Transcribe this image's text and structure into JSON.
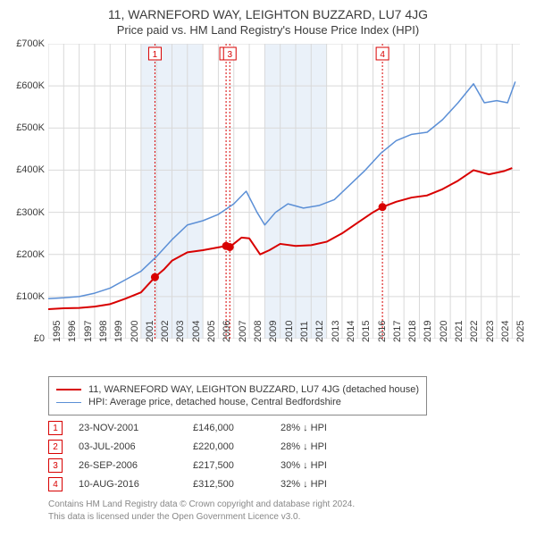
{
  "title": "11, WARNEFORD WAY, LEIGHTON BUZZARD, LU7 4JG",
  "subtitle": "Price paid vs. HM Land Registry's House Price Index (HPI)",
  "chart": {
    "type": "line",
    "background_color": "#ffffff",
    "grid_color": "#d9d9d9",
    "band_color": "#eaf1f9",
    "x": {
      "min": 1995,
      "max": 2025.5,
      "ticks": [
        1995,
        1996,
        1997,
        1998,
        1999,
        2000,
        2001,
        2002,
        2003,
        2004,
        2005,
        2006,
        2007,
        2008,
        2009,
        2010,
        2011,
        2012,
        2013,
        2014,
        2015,
        2016,
        2017,
        2018,
        2019,
        2020,
        2021,
        2022,
        2023,
        2024,
        2025
      ]
    },
    "y": {
      "min": 0,
      "max": 700000,
      "ticks": [
        0,
        100000,
        200000,
        300000,
        400000,
        500000,
        600000,
        700000
      ],
      "tick_labels": [
        "£0",
        "£100K",
        "£200K",
        "£300K",
        "£400K",
        "£500K",
        "£600K",
        "£700K"
      ]
    },
    "bands": [
      [
        2001,
        2005
      ],
      [
        2005,
        2009
      ],
      [
        2009,
        2013
      ],
      [
        2013,
        2017
      ]
    ],
    "series": [
      {
        "id": "property",
        "label": "11, WARNEFORD WAY, LEIGHTON BUZZARD, LU7 4JG (detached house)",
        "color": "#d80000",
        "line_width": 2,
        "points": [
          [
            1995.0,
            70000
          ],
          [
            1996.0,
            72000
          ],
          [
            1997.0,
            73000
          ],
          [
            1998.0,
            76000
          ],
          [
            1999.0,
            82000
          ],
          [
            2000.0,
            95000
          ],
          [
            2001.0,
            110000
          ],
          [
            2001.9,
            146000
          ],
          [
            2002.5,
            165000
          ],
          [
            2003.0,
            185000
          ],
          [
            2004.0,
            205000
          ],
          [
            2005.0,
            210000
          ],
          [
            2006.5,
            220000
          ],
          [
            2006.74,
            217500
          ],
          [
            2007.5,
            240000
          ],
          [
            2008.0,
            238000
          ],
          [
            2008.7,
            200000
          ],
          [
            2009.3,
            210000
          ],
          [
            2010.0,
            225000
          ],
          [
            2011.0,
            220000
          ],
          [
            2012.0,
            222000
          ],
          [
            2013.0,
            230000
          ],
          [
            2014.0,
            250000
          ],
          [
            2015.0,
            275000
          ],
          [
            2016.0,
            300000
          ],
          [
            2016.61,
            312500
          ],
          [
            2017.5,
            325000
          ],
          [
            2018.5,
            335000
          ],
          [
            2019.5,
            340000
          ],
          [
            2020.5,
            355000
          ],
          [
            2021.5,
            375000
          ],
          [
            2022.5,
            400000
          ],
          [
            2023.5,
            390000
          ],
          [
            2024.5,
            398000
          ],
          [
            2025.0,
            405000
          ]
        ]
      },
      {
        "id": "hpi",
        "label": "HPI: Average price, detached house, Central Bedfordshire",
        "color": "#5b8fd6",
        "line_width": 1.5,
        "points": [
          [
            1995.0,
            95000
          ],
          [
            1996.0,
            97000
          ],
          [
            1997.0,
            100000
          ],
          [
            1998.0,
            108000
          ],
          [
            1999.0,
            120000
          ],
          [
            2000.0,
            140000
          ],
          [
            2001.0,
            160000
          ],
          [
            2002.0,
            195000
          ],
          [
            2003.0,
            235000
          ],
          [
            2004.0,
            270000
          ],
          [
            2005.0,
            280000
          ],
          [
            2006.0,
            295000
          ],
          [
            2007.0,
            320000
          ],
          [
            2007.8,
            350000
          ],
          [
            2008.5,
            300000
          ],
          [
            2009.0,
            270000
          ],
          [
            2009.7,
            300000
          ],
          [
            2010.5,
            320000
          ],
          [
            2011.5,
            310000
          ],
          [
            2012.5,
            316000
          ],
          [
            2013.5,
            330000
          ],
          [
            2014.5,
            365000
          ],
          [
            2015.5,
            400000
          ],
          [
            2016.5,
            440000
          ],
          [
            2017.5,
            470000
          ],
          [
            2018.5,
            485000
          ],
          [
            2019.5,
            490000
          ],
          [
            2020.5,
            520000
          ],
          [
            2021.5,
            560000
          ],
          [
            2022.5,
            605000
          ],
          [
            2023.2,
            560000
          ],
          [
            2024.0,
            565000
          ],
          [
            2024.7,
            560000
          ],
          [
            2025.2,
            610000
          ]
        ]
      }
    ],
    "markers": [
      {
        "n": 1,
        "x": 2001.9,
        "y": 146000
      },
      {
        "n": 2,
        "x": 2006.5,
        "y": 220000
      },
      {
        "n": 3,
        "x": 2006.74,
        "y": 217500
      },
      {
        "n": 4,
        "x": 2016.61,
        "y": 312500
      }
    ],
    "marker_color": "#d80000",
    "marker_label_border": "#d80000"
  },
  "legend": {
    "items": [
      {
        "color": "#d80000",
        "width": 2,
        "label_ref": "chart.series.0.label"
      },
      {
        "color": "#5b8fd6",
        "width": 1.5,
        "label_ref": "chart.series.1.label"
      }
    ]
  },
  "transactions": [
    {
      "n": "1",
      "date": "23-NOV-2001",
      "price": "£146,000",
      "diff": "28% ↓ HPI"
    },
    {
      "n": "2",
      "date": "03-JUL-2006",
      "price": "£220,000",
      "diff": "28% ↓ HPI"
    },
    {
      "n": "3",
      "date": "26-SEP-2006",
      "price": "£217,500",
      "diff": "30% ↓ HPI"
    },
    {
      "n": "4",
      "date": "10-AUG-2016",
      "price": "£312,500",
      "diff": "32% ↓ HPI"
    }
  ],
  "footer_line1": "Contains HM Land Registry data © Crown copyright and database right 2024.",
  "footer_line2": "This data is licensed under the Open Government Licence v3.0."
}
